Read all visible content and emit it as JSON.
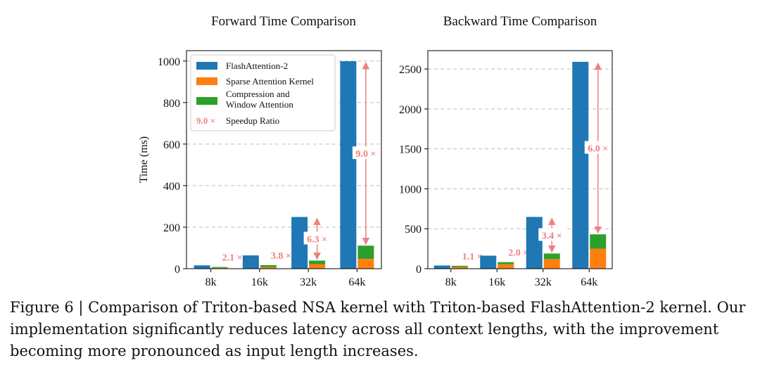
{
  "chart_data": [
    {
      "type": "bar",
      "title": "Forward Time Comparison",
      "ylabel": "Time (ms)",
      "xlabel": "",
      "categories": [
        "8k",
        "16k",
        "32k",
        "64k"
      ],
      "ylim": [
        0,
        1050
      ],
      "yticks": [
        0,
        200,
        400,
        600,
        800,
        1000
      ],
      "grid": true,
      "series": [
        {
          "name": "FlashAttention-2",
          "values": [
            16,
            64,
            249,
            999
          ]
        },
        {
          "name": "Sparse Attention Kernel",
          "values": [
            4,
            8,
            22,
            47
          ]
        },
        {
          "name": "Compression and Window Attention",
          "values": [
            4,
            9,
            17,
            64
          ]
        }
      ],
      "speedups": [
        "2.1 ×",
        "3.8 ×",
        "6.3 ×",
        "9.0 ×"
      ],
      "legend": {
        "position": "top-left",
        "entries": [
          "FlashAttention-2",
          "Sparse Attention Kernel",
          "Compression and",
          "Window Attention",
          "Speedup Ratio"
        ],
        "ratio_sample": "9.0 ×"
      }
    },
    {
      "type": "bar",
      "title": "Backward Time Comparison",
      "ylabel": "",
      "xlabel": "",
      "categories": [
        "8k",
        "16k",
        "32k",
        "64k"
      ],
      "ylim": [
        0,
        2730
      ],
      "yticks": [
        0,
        500,
        1000,
        1500,
        2000,
        2500
      ],
      "grid": true,
      "series": [
        {
          "name": "FlashAttention-2",
          "values": [
            40,
            163,
            648,
            2590
          ]
        },
        {
          "name": "Sparse Attention Kernel",
          "values": [
            22,
            55,
            120,
            250
          ]
        },
        {
          "name": "Compression and Window Attention",
          "values": [
            14,
            27,
            70,
            180
          ]
        }
      ],
      "speedups": [
        "1.1 ×",
        "2.0 ×",
        "3.4 ×",
        "6.0 ×"
      ]
    }
  ],
  "colors": {
    "flash": "#1f77b4",
    "sparse": "#ff7f0e",
    "compression": "#2ca02c",
    "speedup": "#f08080"
  },
  "caption": "Figure 6 | Comparison of Triton-based NSA kernel with Triton-based FlashAttention-2 kernel. Our implementation significantly reduces latency across all context lengths, with the improvement becoming more pronounced as input length increases."
}
